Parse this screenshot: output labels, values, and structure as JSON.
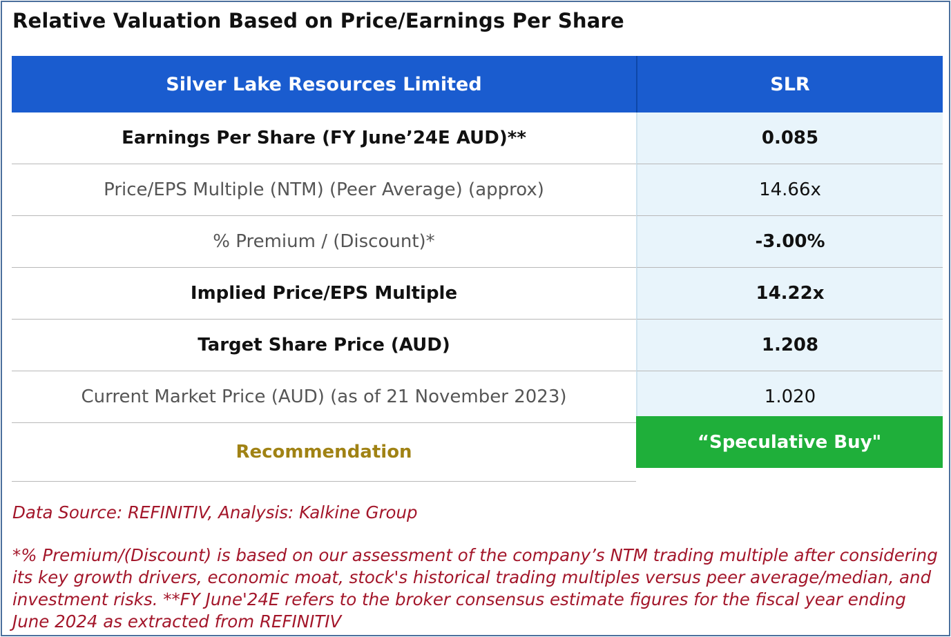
{
  "title": "Relative Valuation Based on Price/Earnings Per Share",
  "header": {
    "company": "Silver Lake Resources Limited",
    "ticker": "SLR"
  },
  "rows": [
    {
      "label": "Earnings Per Share (FY June’24E AUD)**",
      "value": "0.085",
      "style": "bold"
    },
    {
      "label": "Price/EPS Multiple (NTM) (Peer Average) (approx)",
      "value": "14.66x",
      "style": "light"
    },
    {
      "label": "% Premium / (Discount)*",
      "value": "-3.00%",
      "style": "light-negative"
    },
    {
      "label": "Implied Price/EPS Multiple",
      "value": "14.22x",
      "style": "bold"
    },
    {
      "label": "Target Share Price (AUD)",
      "value": "1.208",
      "style": "bold"
    },
    {
      "label": "Current Market Price (AUD) (as of 21 November 2023)",
      "value": "1.020",
      "style": "light"
    }
  ],
  "recommendation": {
    "label": "Recommendation",
    "value": "“Speculative Buy\""
  },
  "notes": {
    "source": "Data Source: REFINITIV, Analysis: Kalkine Group",
    "footnote": "*% Premium/(Discount) is based on our assessment of the company’s NTM trading multiple after considering its key growth drivers, economic moat, stock's historical trading multiples versus peer average/median, and investment risks. **FY June'24E refers to the broker consensus estimate figures for the fiscal year ending June 2024 as extracted from REFINITIV"
  },
  "colors": {
    "header_blue": "#1a5ccf",
    "value_bg": "#e8f4fb",
    "buy_green": "#1faf3a",
    "recommendation_gold": "#a08214",
    "note_red": "#a3162a"
  }
}
